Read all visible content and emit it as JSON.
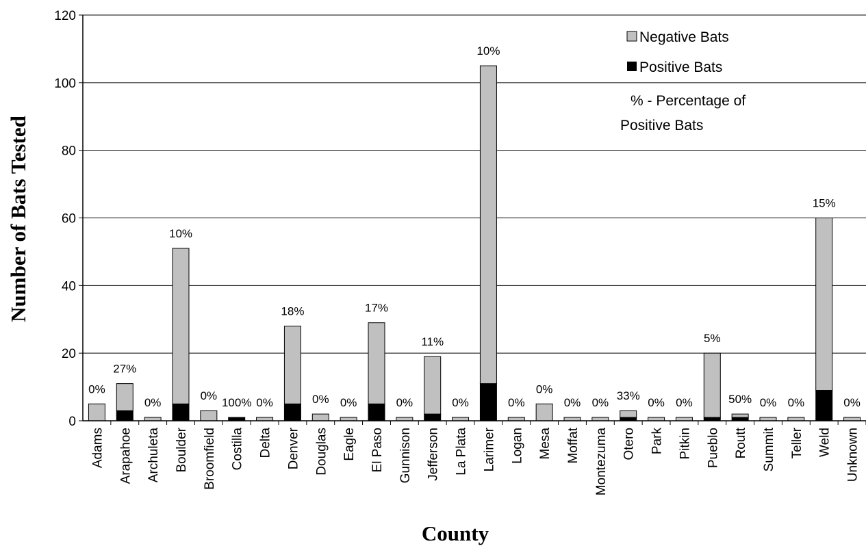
{
  "chart_data": {
    "type": "bar",
    "stacked": true,
    "title": "",
    "xlabel": "County",
    "ylabel": "Number of Bats Tested",
    "ylim": [
      0,
      120
    ],
    "yticks": [
      0,
      20,
      40,
      60,
      80,
      100,
      120
    ],
    "grid": "horizontal",
    "legend_position": "top-right",
    "legend_note": [
      "% - Percentage of",
      "Positive Bats"
    ],
    "categories": [
      "Adams",
      "Arapahoe",
      "Archuleta",
      "Boulder",
      "Broomfield",
      "Costilla",
      "Delta",
      "Denver",
      "Douglas",
      "Eagle",
      "El Paso",
      "Gunnison",
      "Jefferson",
      "La Plata",
      "Larimer",
      "Logan",
      "Mesa",
      "Moffat",
      "Montezuma",
      "Otero",
      "Park",
      "Pitkin",
      "Pueblo",
      "Routt",
      "Summit",
      "Teller",
      "Weld",
      "Unknown"
    ],
    "series": [
      {
        "name": "Positive Bats",
        "color": "#000000",
        "values": [
          0,
          3,
          0,
          5,
          0,
          1,
          0,
          5,
          0,
          0,
          5,
          0,
          2,
          0,
          11,
          0,
          0,
          0,
          0,
          1,
          0,
          0,
          1,
          1,
          0,
          0,
          9,
          0
        ]
      },
      {
        "name": "Negative Bats",
        "color": "#c0c0c0",
        "values": [
          5,
          8,
          1,
          46,
          3,
          0,
          1,
          23,
          2,
          1,
          24,
          1,
          17,
          1,
          94,
          1,
          5,
          1,
          1,
          2,
          1,
          1,
          19,
          1,
          1,
          1,
          51,
          1
        ]
      }
    ],
    "percent_labels": [
      "0%",
      "27%",
      "0%",
      "10%",
      "0%",
      "100%",
      "0%",
      "18%",
      "0%",
      "0%",
      "17%",
      "0%",
      "11%",
      "0%",
      "10%",
      "0%",
      "0%",
      "0%",
      "0%",
      "33%",
      "0%",
      "0%",
      "5%",
      "50%",
      "0%",
      "0%",
      "15%",
      "0%"
    ]
  }
}
